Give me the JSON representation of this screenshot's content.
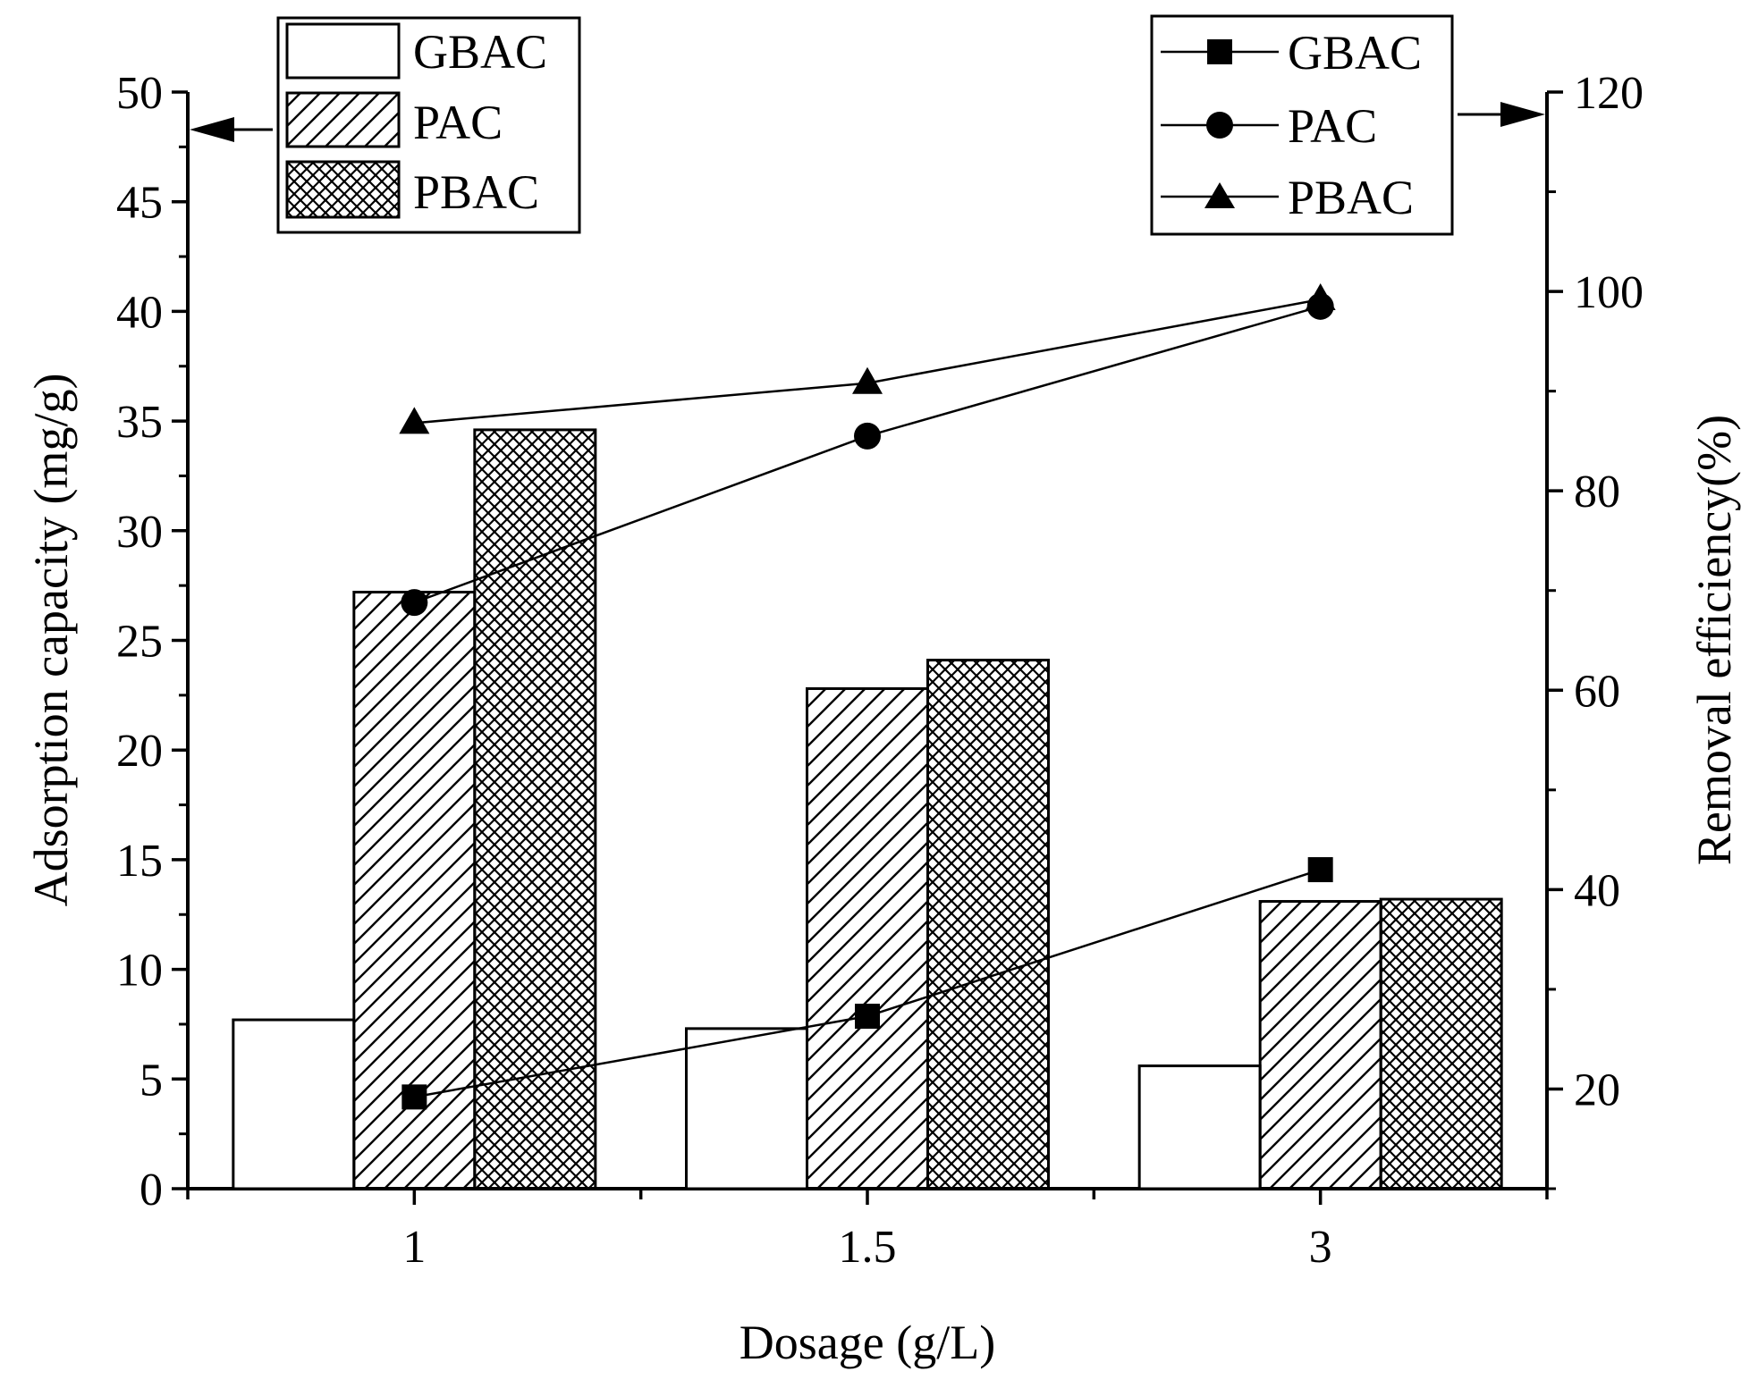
{
  "chart_data": {
    "type": "bar+line",
    "xlabel": "Dosage (g/L)",
    "categories": [
      "1",
      "1.5",
      "3"
    ],
    "left_axis": {
      "label": "Adsorption capacity (mg/g)",
      "ylim": [
        0,
        50
      ],
      "ticks": [
        "0",
        "5",
        "10",
        "15",
        "20",
        "25",
        "30",
        "35",
        "40",
        "45",
        "50"
      ]
    },
    "right_axis": {
      "label": "Removal efficiency(%)",
      "ylim": [
        10,
        120
      ],
      "ticks": [
        "20",
        "40",
        "60",
        "80",
        "100",
        "120"
      ]
    },
    "bar_series": [
      {
        "name": "GBAC",
        "pattern": "none",
        "values": [
          7.7,
          7.3,
          5.6
        ]
      },
      {
        "name": "PAC",
        "pattern": "hatch",
        "values": [
          27.2,
          22.8,
          13.1
        ]
      },
      {
        "name": "PBAC",
        "pattern": "crosshatch",
        "values": [
          34.6,
          24.1,
          13.2
        ]
      }
    ],
    "line_series": [
      {
        "name": "GBAC",
        "marker": "square",
        "values": [
          19.2,
          27.3,
          42.0
        ]
      },
      {
        "name": "PAC",
        "marker": "circle",
        "values": [
          68.8,
          85.5,
          98.5
        ]
      },
      {
        "name": "PBAC",
        "marker": "triangle",
        "values": [
          86.8,
          90.8,
          99.2
        ]
      }
    ],
    "bar_legend": {
      "position": "top-left",
      "entries": [
        "GBAC",
        "PAC",
        "PBAC"
      ]
    },
    "line_legend": {
      "position": "top-right",
      "entries": [
        "GBAC",
        "PAC",
        "PBAC"
      ]
    },
    "colors": {
      "line": "#000000",
      "bar_fill": "#ffffff",
      "marker": "#000000"
    }
  }
}
